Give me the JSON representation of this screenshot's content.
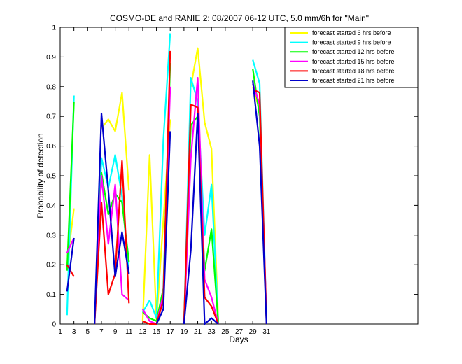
{
  "chart_data": {
    "type": "line",
    "title": "COSMO-DE and RANIE 2: 08/2007 06-12 UTC, 5.0 mm/6h for \"Main\"",
    "xlabel": "Days",
    "ylabel": "Probability of detection",
    "xlim": [
      1,
      53
    ],
    "ylim": [
      0,
      1
    ],
    "xticks": [
      1,
      3,
      5,
      7,
      9,
      11,
      13,
      15,
      17,
      19,
      21,
      23,
      25,
      27,
      29,
      31
    ],
    "yticks": [
      0,
      0.1,
      0.2,
      0.3,
      0.4,
      0.5,
      0.6,
      0.7,
      0.8,
      0.9,
      1
    ],
    "ytick_labels": [
      "0",
      "0.1",
      "0.2",
      "0.3",
      "0.4",
      "0.5",
      "0.6",
      "0.7",
      "0.8",
      "0.9",
      "1"
    ],
    "legend_position": "top-right",
    "series": [
      {
        "name": "forecast started 6 hrs before",
        "color": "#ffff00",
        "points": [
          [
            2,
            0.2
          ],
          [
            3,
            0.39
          ],
          null,
          [
            7,
            0.66
          ],
          [
            8,
            0.69
          ],
          [
            9,
            0.65
          ],
          [
            10,
            0.78
          ],
          [
            11,
            0.45
          ],
          null,
          [
            13,
            0.01
          ],
          [
            14,
            0.57
          ],
          [
            15,
            0.01
          ],
          [
            16,
            0.35
          ],
          [
            17,
            0.69
          ],
          null,
          [
            20,
            0.8
          ],
          [
            21,
            0.93
          ],
          [
            22,
            0.68
          ],
          [
            23,
            0.59
          ],
          [
            24,
            0.01
          ],
          null,
          [
            29,
            0.8
          ],
          [
            30,
            0.72
          ],
          [
            31,
            0.01
          ]
        ]
      },
      {
        "name": "forecast started 9 hrs before",
        "color": "#00ffff",
        "points": [
          [
            2,
            0.03
          ],
          [
            3,
            0.77
          ],
          null,
          [
            6,
            0.0
          ],
          [
            7,
            0.56
          ],
          [
            8,
            0.46
          ],
          [
            9,
            0.57
          ],
          [
            10,
            0.43
          ],
          [
            11,
            0.17
          ],
          null,
          [
            13,
            0.04
          ],
          [
            14,
            0.08
          ],
          [
            15,
            0.02
          ],
          [
            16,
            0.62
          ],
          [
            17,
            0.98
          ],
          null,
          [
            19,
            0.0
          ],
          [
            20,
            0.83
          ],
          [
            21,
            0.75
          ],
          [
            22,
            0.3
          ],
          [
            23,
            0.47
          ],
          [
            24,
            0.0
          ],
          null,
          [
            29,
            0.89
          ],
          [
            30,
            0.81
          ],
          [
            31,
            0.01
          ]
        ]
      },
      {
        "name": "forecast started 12 hrs before",
        "color": "#00ff00",
        "points": [
          [
            2,
            0.18
          ],
          [
            3,
            0.75
          ],
          null,
          [
            6,
            0.0
          ],
          [
            7,
            0.51
          ],
          [
            8,
            0.37
          ],
          [
            9,
            0.44
          ],
          [
            10,
            0.41
          ],
          [
            11,
            0.21
          ],
          null,
          [
            13,
            0.04
          ],
          [
            14,
            0.02
          ],
          [
            15,
            0.01
          ],
          [
            16,
            0.12
          ],
          [
            17,
            0.88
          ],
          null,
          [
            19,
            0.0
          ],
          [
            20,
            0.67
          ],
          [
            21,
            0.7
          ],
          [
            22,
            0.18
          ],
          [
            23,
            0.32
          ],
          [
            24,
            0.0
          ],
          null,
          [
            29,
            0.86
          ],
          [
            30,
            0.7
          ],
          [
            31,
            0.01
          ]
        ]
      },
      {
        "name": "forecast started 15 hrs before",
        "color": "#ff00ff",
        "points": [
          [
            2,
            0.24
          ],
          [
            3,
            0.29
          ],
          null,
          [
            6,
            0.0
          ],
          [
            7,
            0.5
          ],
          [
            8,
            0.27
          ],
          [
            9,
            0.47
          ],
          [
            10,
            0.1
          ],
          [
            11,
            0.08
          ],
          null,
          [
            13,
            0.05
          ],
          [
            14,
            0.01
          ],
          [
            15,
            0.0
          ],
          [
            16,
            0.1
          ],
          [
            17,
            0.8
          ],
          null,
          [
            19,
            0.0
          ],
          [
            20,
            0.56
          ],
          [
            21,
            0.83
          ],
          [
            22,
            0.15
          ],
          [
            23,
            0.09
          ],
          [
            24,
            0.0
          ],
          null,
          [
            29,
            0.81
          ],
          [
            30,
            0.74
          ],
          [
            31,
            0.02
          ]
        ]
      },
      {
        "name": "forecast started 18 hrs before",
        "color": "#ff0000",
        "points": [
          [
            2,
            0.2
          ],
          [
            3,
            0.16
          ],
          null,
          [
            6,
            0.0
          ],
          [
            7,
            0.41
          ],
          [
            8,
            0.1
          ],
          [
            9,
            0.17
          ],
          [
            10,
            0.55
          ],
          [
            11,
            0.07
          ],
          null,
          [
            13,
            0.01
          ],
          [
            14,
            0.0
          ],
          [
            15,
            0.0
          ],
          [
            16,
            0.08
          ],
          [
            17,
            0.92
          ],
          null,
          [
            19,
            0.0
          ],
          [
            20,
            0.74
          ],
          [
            21,
            0.73
          ],
          [
            22,
            0.09
          ],
          [
            23,
            0.06
          ],
          [
            24,
            0.0
          ],
          null,
          [
            29,
            0.79
          ],
          [
            30,
            0.78
          ],
          [
            31,
            0.0
          ]
        ]
      },
      {
        "name": "forecast started 21 hrs before",
        "color": "#0000cc",
        "points": [
          [
            2,
            0.11
          ],
          [
            3,
            0.29
          ],
          null,
          [
            6,
            0.0
          ],
          [
            7,
            0.71
          ],
          [
            8,
            0.45
          ],
          [
            9,
            0.16
          ],
          [
            10,
            0.31
          ],
          [
            11,
            0.17
          ],
          null,
          [
            15,
            0.0
          ],
          [
            16,
            0.05
          ],
          [
            17,
            0.65
          ],
          null,
          [
            19,
            0.0
          ],
          [
            20,
            0.25
          ],
          [
            21,
            0.71
          ],
          [
            22,
            0.0
          ],
          [
            23,
            0.02
          ],
          [
            24,
            0.0
          ],
          null,
          [
            29,
            0.82
          ],
          [
            30,
            0.6
          ],
          [
            31,
            0.0
          ]
        ]
      }
    ]
  }
}
